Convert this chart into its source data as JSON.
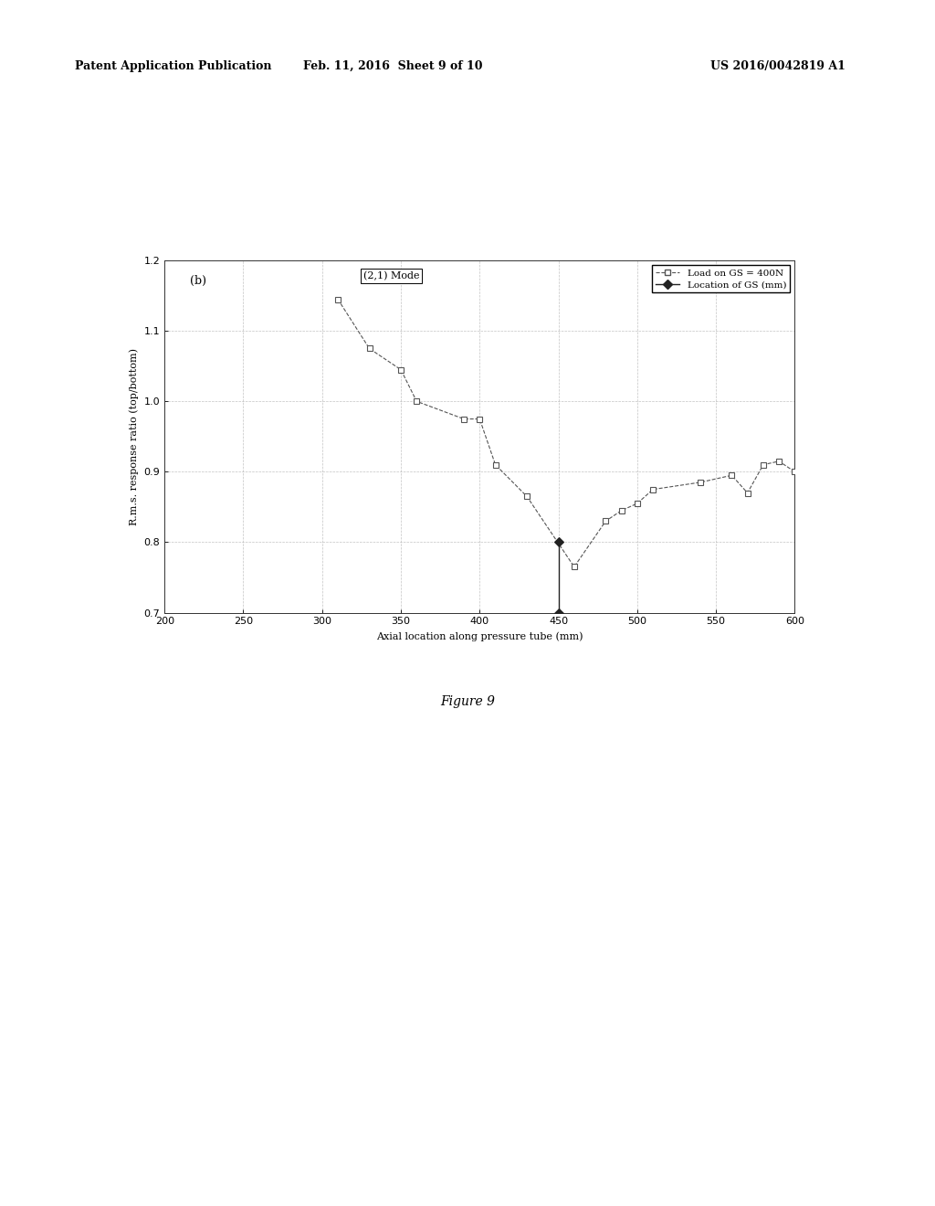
{
  "header_left": "Patent Application Publication",
  "header_mid": "Feb. 11, 2016  Sheet 9 of 10",
  "header_right": "US 2016/0042819 A1",
  "figure_label": "Figure 9",
  "panel_label": "(b)",
  "mode_label": "(2,1) Mode",
  "xlabel": "Axial location along pressure tube (mm)",
  "ylabel": "R.m.s. response ratio (top/bottom)",
  "xlim": [
    200,
    600
  ],
  "ylim": [
    0.7,
    1.2
  ],
  "xticks": [
    200,
    250,
    300,
    350,
    400,
    450,
    500,
    550,
    600
  ],
  "yticks": [
    0.7,
    0.8,
    0.9,
    1.0,
    1.1,
    1.2
  ],
  "series1_x": [
    310,
    330,
    350,
    360,
    390,
    400,
    410,
    430,
    460,
    480,
    490,
    500,
    510,
    540,
    560,
    570,
    580,
    590,
    600
  ],
  "series1_y": [
    1.145,
    1.075,
    1.045,
    1.0,
    0.975,
    0.975,
    0.91,
    0.865,
    0.765,
    0.83,
    0.845,
    0.855,
    0.875,
    0.885,
    0.895,
    0.87,
    0.91,
    0.915,
    0.9
  ],
  "series2_x": [
    450,
    450
  ],
  "series2_y": [
    0.7,
    0.8
  ],
  "series1_color": "#555555",
  "series2_color": "#222222",
  "legend1_label": "Load on GS = 400N",
  "legend2_label": "Location of GS (mm)",
  "background_color": "#ffffff",
  "grid_color": "#aaaaaa",
  "axis_fontsize": 8,
  "tick_fontsize": 8,
  "legend_fontsize": 7.5,
  "header_fontsize": 9,
  "panel_fontsize": 9,
  "mode_fontsize": 8,
  "figure_label_fontsize": 10
}
